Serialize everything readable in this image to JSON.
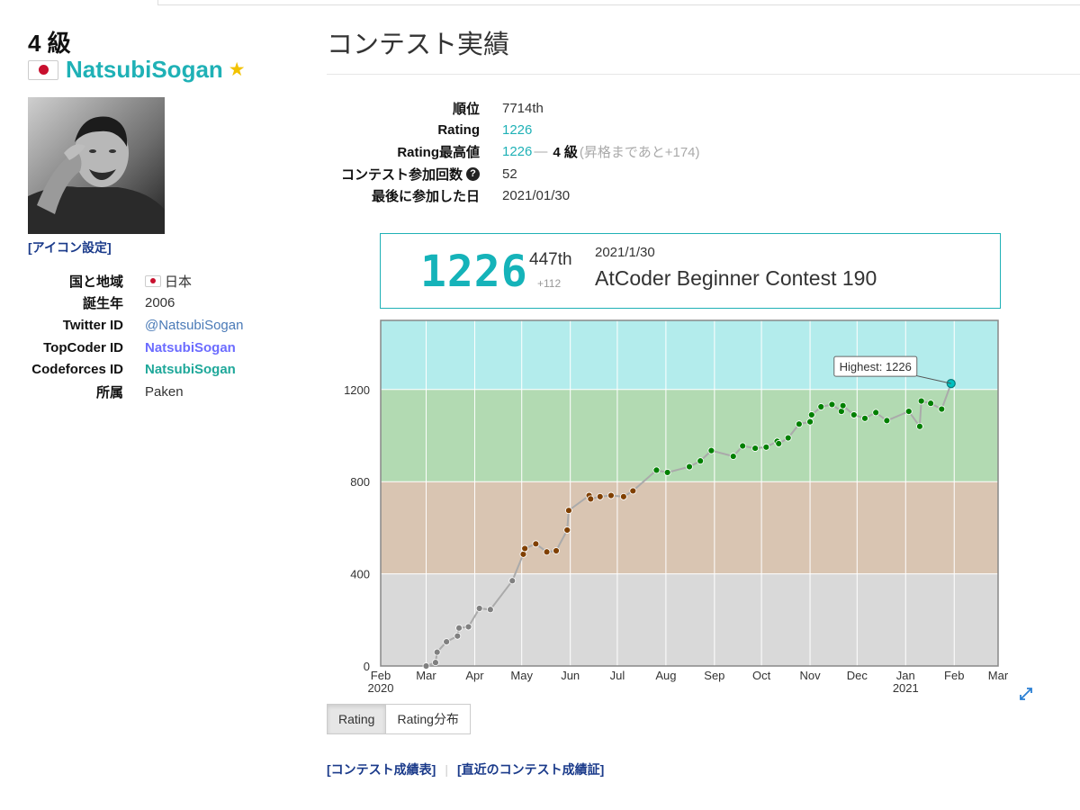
{
  "profile": {
    "rank_title": "4 級",
    "username": "NatsubiSogan",
    "icon_setting_label": "[アイコン設定]",
    "info": [
      {
        "label": "国と地域",
        "value": "日本"
      },
      {
        "label": "誕生年",
        "value": "2006"
      },
      {
        "label": "Twitter ID",
        "value": "@NatsubiSogan"
      },
      {
        "label": "TopCoder ID",
        "value": "NatsubiSogan"
      },
      {
        "label": "Codeforces ID",
        "value": "NatsubiSogan"
      },
      {
        "label": "所属",
        "value": "Paken"
      }
    ]
  },
  "main": {
    "title": "コンテスト実績",
    "stats": {
      "rank_label": "順位",
      "rank_value": "7714th",
      "rating_label": "Rating",
      "rating_value": "1226",
      "highest_label": "Rating最高値",
      "highest_value": "1226",
      "highest_dash": "—",
      "highest_rank": "4 級",
      "highest_note": "(昇格まであと+174)",
      "count_label": "コンテスト参加回数",
      "count_value": "52",
      "last_label": "最後に参加した日",
      "last_value": "2021/01/30"
    },
    "contest_box": {
      "rating": "1226",
      "place": "447th",
      "diff": "+112",
      "date": "2021/1/30",
      "name": "AtCoder Beginner Contest 190"
    },
    "tabs": [
      {
        "label": "Rating",
        "active": true
      },
      {
        "label": "Rating分布",
        "active": false
      }
    ],
    "links": {
      "results": "[コンテスト成績表]",
      "certificate": "[直近のコンテスト成績証]"
    }
  },
  "chart_data": {
    "type": "line",
    "x_axis": "date",
    "xlim": [
      "2020-02-01",
      "2021-03-01"
    ],
    "ylim": [
      0,
      1500
    ],
    "y_ticks": [
      0,
      400,
      800,
      1200
    ],
    "x_ticks": [
      "Feb",
      "Mar",
      "Apr",
      "May",
      "Jun",
      "Jul",
      "Aug",
      "Sep",
      "Oct",
      "Nov",
      "Dec",
      "Jan",
      "Feb",
      "Mar"
    ],
    "x_year_labels": [
      {
        "month": "Feb",
        "label": "2020"
      },
      {
        "month": "Jan",
        "label": "2021"
      }
    ],
    "bands": [
      {
        "from": 0,
        "to": 400,
        "color": "#d9d9d9"
      },
      {
        "from": 400,
        "to": 800,
        "color": "#d9c5b2"
      },
      {
        "from": 800,
        "to": 1200,
        "color": "#b2dab2"
      },
      {
        "from": 1200,
        "to": 1500,
        "color": "#b3ecec"
      }
    ],
    "tooltip": "Highest: 1226",
    "series": [
      {
        "points": [
          {
            "x": "2020-03-01",
            "y": 0
          },
          {
            "x": "2020-03-07",
            "y": 15
          },
          {
            "x": "2020-03-08",
            "y": 60
          },
          {
            "x": "2020-03-14",
            "y": 105
          },
          {
            "x": "2020-03-21",
            "y": 130
          },
          {
            "x": "2020-03-22",
            "y": 165
          },
          {
            "x": "2020-03-28",
            "y": 170
          },
          {
            "x": "2020-04-04",
            "y": 250
          },
          {
            "x": "2020-04-11",
            "y": 245
          },
          {
            "x": "2020-04-25",
            "y": 370
          },
          {
            "x": "2020-05-02",
            "y": 485
          },
          {
            "x": "2020-05-03",
            "y": 510
          },
          {
            "x": "2020-05-10",
            "y": 530
          },
          {
            "x": "2020-05-17",
            "y": 495
          },
          {
            "x": "2020-05-23",
            "y": 500
          },
          {
            "x": "2020-05-30",
            "y": 590
          },
          {
            "x": "2020-05-31",
            "y": 675
          },
          {
            "x": "2020-06-13",
            "y": 740
          },
          {
            "x": "2020-06-14",
            "y": 725
          },
          {
            "x": "2020-06-20",
            "y": 735
          },
          {
            "x": "2020-06-27",
            "y": 740
          },
          {
            "x": "2020-07-05",
            "y": 735
          },
          {
            "x": "2020-07-11",
            "y": 760
          },
          {
            "x": "2020-07-26",
            "y": 850
          },
          {
            "x": "2020-08-02",
            "y": 840
          },
          {
            "x": "2020-08-16",
            "y": 865
          },
          {
            "x": "2020-08-23",
            "y": 890
          },
          {
            "x": "2020-08-30",
            "y": 935
          },
          {
            "x": "2020-09-13",
            "y": 910
          },
          {
            "x": "2020-09-19",
            "y": 955
          },
          {
            "x": "2020-09-27",
            "y": 945
          },
          {
            "x": "2020-10-04",
            "y": 950
          },
          {
            "x": "2020-10-11",
            "y": 975
          },
          {
            "x": "2020-10-12",
            "y": 965
          },
          {
            "x": "2020-10-18",
            "y": 990
          },
          {
            "x": "2020-10-25",
            "y": 1050
          },
          {
            "x": "2020-11-01",
            "y": 1060
          },
          {
            "x": "2020-11-02",
            "y": 1090
          },
          {
            "x": "2020-11-08",
            "y": 1125
          },
          {
            "x": "2020-11-15",
            "y": 1135
          },
          {
            "x": "2020-11-21",
            "y": 1105
          },
          {
            "x": "2020-11-22",
            "y": 1130
          },
          {
            "x": "2020-11-29",
            "y": 1090
          },
          {
            "x": "2020-12-06",
            "y": 1075
          },
          {
            "x": "2020-12-13",
            "y": 1100
          },
          {
            "x": "2020-12-20",
            "y": 1065
          },
          {
            "x": "2021-01-03",
            "y": 1105
          },
          {
            "x": "2021-01-10",
            "y": 1040
          },
          {
            "x": "2021-01-11",
            "y": 1150
          },
          {
            "x": "2021-01-17",
            "y": 1140
          },
          {
            "x": "2021-01-24",
            "y": 1115
          },
          {
            "x": "2021-01-30",
            "y": 1226
          }
        ]
      }
    ]
  }
}
